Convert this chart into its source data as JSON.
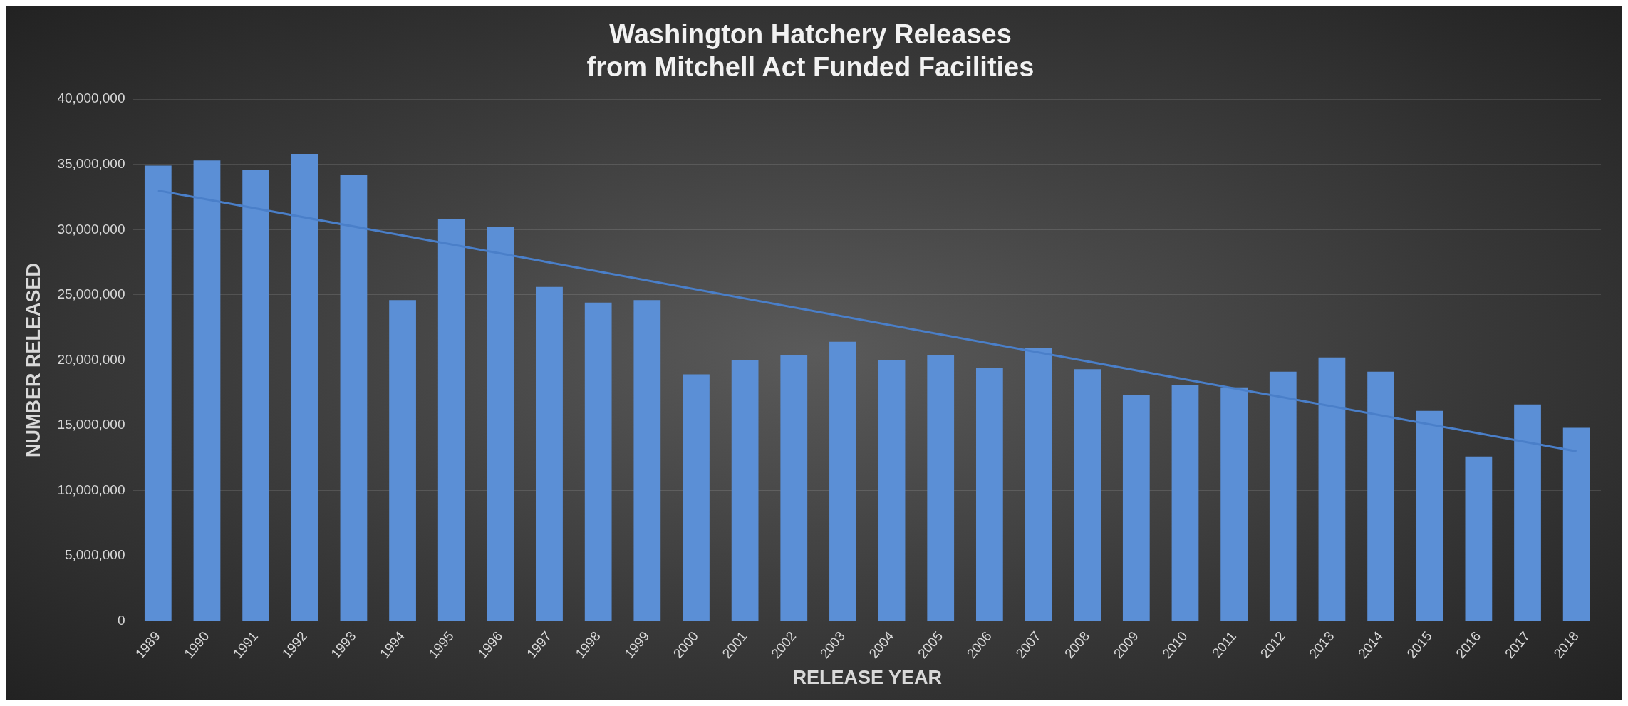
{
  "chart_data": {
    "type": "bar",
    "title": "Washington Hatchery Releases\nfrom Mitchell Act Funded Facilities",
    "xlabel": "RELEASE YEAR",
    "ylabel": "NUMBER RELEASED",
    "categories": [
      "1989",
      "1990",
      "1991",
      "1992",
      "1993",
      "1994",
      "1995",
      "1996",
      "1997",
      "1998",
      "1999",
      "2000",
      "2001",
      "2002",
      "2003",
      "2004",
      "2005",
      "2006",
      "2007",
      "2008",
      "2009",
      "2010",
      "2011",
      "2012",
      "2013",
      "2014",
      "2015",
      "2016",
      "2017",
      "2018"
    ],
    "series": [
      {
        "color": "#5b8fd6",
        "values": [
          34900000,
          35300000,
          34600000,
          35800000,
          34200000,
          24600000,
          30800000,
          30200000,
          25600000,
          24400000,
          24600000,
          18900000,
          20000000,
          20400000,
          21400000,
          20000000,
          20400000,
          19400000,
          20900000,
          19300000,
          17300000,
          18100000,
          17900000,
          19100000,
          20200000,
          19100000,
          16100000,
          12600000,
          16600000,
          14800000
        ]
      },
      {
        "type": "line",
        "color": "#4a7fc9",
        "values": [
          33000000,
          null,
          null,
          null,
          null,
          null,
          null,
          null,
          null,
          null,
          null,
          null,
          null,
          null,
          null,
          null,
          null,
          null,
          null,
          null,
          null,
          null,
          null,
          null,
          null,
          null,
          null,
          null,
          null,
          13000000
        ]
      }
    ],
    "ylim": [
      0,
      40000000
    ],
    "yticks": [
      {
        "value": 0,
        "label": "0"
      },
      {
        "value": 5000000,
        "label": "5,000,000"
      },
      {
        "value": 10000000,
        "label": "10,000,000"
      },
      {
        "value": 15000000,
        "label": "15,000,000"
      },
      {
        "value": 20000000,
        "label": "20,000,000"
      },
      {
        "value": 25000000,
        "label": "25,000,000"
      },
      {
        "value": 30000000,
        "label": "30,000,000"
      },
      {
        "value": 35000000,
        "label": "35,000,000"
      },
      {
        "value": 40000000,
        "label": "40,000,000"
      }
    ],
    "grid": "y",
    "legend": false,
    "marker": "none"
  }
}
